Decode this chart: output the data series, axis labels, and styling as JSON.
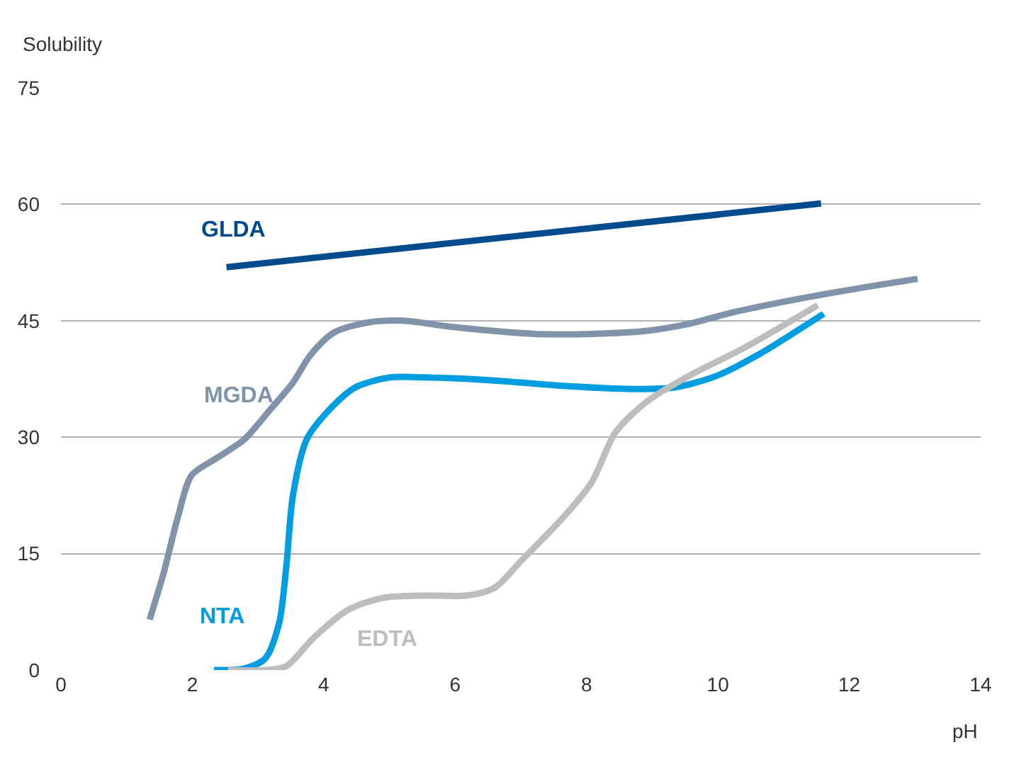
{
  "chart_data": {
    "type": "line",
    "xlabel": "pH",
    "ylabel": "Solubility",
    "xlim": [
      0,
      14
    ],
    "xticks": [
      0,
      2,
      4,
      6,
      8,
      10,
      12,
      14
    ],
    "ylim": [
      0,
      75
    ],
    "yticks": [
      0,
      15,
      30,
      45,
      60,
      75
    ],
    "grid": "y",
    "legend": false,
    "marker": "none",
    "line_style": "solid",
    "series": [
      {
        "name": "GLDA",
        "color": "#004b8d",
        "x": [
          2.52,
          11.57
        ],
        "values": [
          51.9,
          60.1
        ]
      },
      {
        "name": "MGDA",
        "color": "#8093a8",
        "x": [
          1.35,
          1.56,
          1.78,
          1.99,
          2.37,
          2.79,
          3.2,
          3.53,
          3.8,
          4.16,
          4.69,
          5.22,
          5.96,
          7.23,
          8.08,
          8.92,
          9.56,
          10.19,
          11.04,
          11.88,
          13.04
        ],
        "values": [
          6.5,
          12.4,
          19.7,
          25.1,
          27.3,
          29.7,
          33.7,
          37,
          40.6,
          43.5,
          44.8,
          45,
          44.2,
          43.3,
          43.3,
          43.7,
          44.6,
          46,
          47.5,
          48.8,
          50.4
        ]
      },
      {
        "name": "NTA",
        "color": "#009ee0",
        "x": [
          2.33,
          2.79,
          3.11,
          3.32,
          3.43,
          3.53,
          3.74,
          4.06,
          4.48,
          5.01,
          5.54,
          6.6,
          7.65,
          8.71,
          9.34,
          9.98,
          10.61,
          11.61
        ],
        "values": [
          0,
          0.2,
          1.5,
          6,
          13.3,
          22.4,
          29.7,
          33.3,
          36.4,
          37.7,
          37.7,
          37.3,
          36.6,
          36.2,
          36.4,
          37.9,
          40.6,
          45.9
        ]
      },
      {
        "name": "EDTA",
        "color": "#bdbdbd",
        "x": [
          2.54,
          3.11,
          3.43,
          3.85,
          4.38,
          4.9,
          5.54,
          6.17,
          6.6,
          7.02,
          7.65,
          8.08,
          8.44,
          8.92,
          9.56,
          10.4,
          11.52
        ],
        "values": [
          0,
          0,
          0.5,
          4.2,
          7.8,
          9.3,
          9.6,
          9.6,
          10.6,
          14.2,
          19.7,
          24.2,
          30.6,
          34.6,
          37.9,
          41.5,
          47
        ]
      }
    ]
  }
}
